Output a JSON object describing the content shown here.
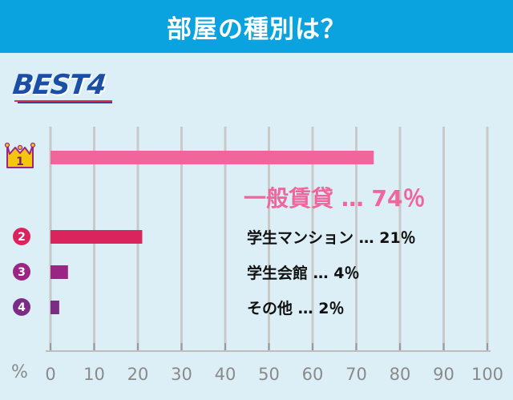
{
  "header": {
    "title": "部屋の種別は？"
  },
  "badge": {
    "text": "BEST4"
  },
  "colors": {
    "header_bg": "#0aa3df",
    "background": "#dceff7",
    "grid": "#c9c9c9",
    "bar_1": "#f0669c",
    "bar_2": "#d9245e",
    "bar_3": "#9b2585",
    "bar_4": "#7b2d86"
  },
  "chart_data": {
    "type": "bar",
    "orientation": "horizontal",
    "unit": "%",
    "xlim": [
      0,
      100
    ],
    "ticks": [
      "0",
      "10",
      "20",
      "30",
      "40",
      "50",
      "60",
      "70",
      "80",
      "90",
      "100"
    ],
    "grid": true,
    "categories": [
      "一般賃貸",
      "学生マンション",
      "学生会館",
      "その他"
    ],
    "values": [
      74,
      21,
      4,
      2
    ],
    "ranks": [
      "1",
      "2",
      "3",
      "4"
    ],
    "labels": [
      "一般賃貸 … 74％",
      "学生マンション … 21％",
      "学生会館 … 4％",
      "その他 … 2％"
    ]
  }
}
